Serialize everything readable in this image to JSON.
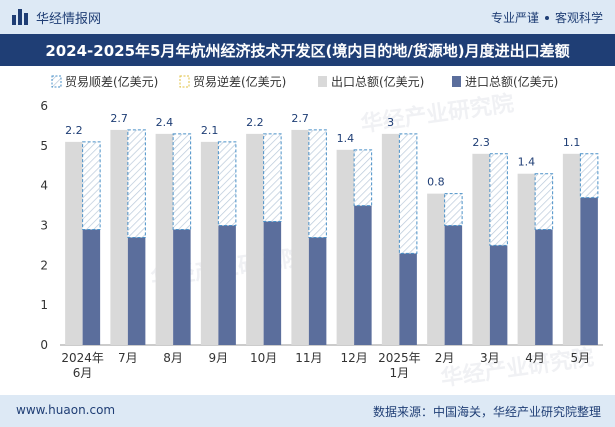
{
  "header": {
    "brand": "华经情报网",
    "tag1": "专业严谨",
    "tag2": "客观科学"
  },
  "title": "2024-2025年5月年杭州经济技术开发区(境内目的地/货源地)月度进出口差额",
  "footer": {
    "site": "www.huaon.com",
    "source": "数据来源：中国海关，华经产业研究院整理"
  },
  "watermark": "华经产业研究院",
  "colors": {
    "export": "#d9d9d9",
    "import": "#5b6e9c",
    "surplus_border": "#4a90c8",
    "axis_text": "#333333"
  },
  "chart_data": {
    "type": "bar",
    "categories": [
      [
        "2024年",
        "6月"
      ],
      [
        "7月"
      ],
      [
        "8月"
      ],
      [
        "9月"
      ],
      [
        "10月"
      ],
      [
        "11月"
      ],
      [
        "12月"
      ],
      [
        "2025年",
        "1月"
      ],
      [
        "2月"
      ],
      [
        "3月"
      ],
      [
        "4月"
      ],
      [
        "5月"
      ]
    ],
    "series": [
      {
        "name": "贸易顺差(亿美元)",
        "values": [
          2.2,
          2.7,
          2.4,
          2.1,
          2.2,
          2.7,
          1.4,
          3,
          0.8,
          2.3,
          1.4,
          1.1
        ]
      },
      {
        "name": "贸易逆差(亿美元)",
        "values": [
          null,
          null,
          null,
          null,
          null,
          null,
          null,
          null,
          null,
          null,
          null,
          null
        ]
      },
      {
        "name": "出口总额(亿美元)",
        "values": [
          5.1,
          5.4,
          5.3,
          5.1,
          5.3,
          5.4,
          4.9,
          5.3,
          3.8,
          4.8,
          4.3,
          4.8
        ]
      },
      {
        "name": "进口总额(亿美元)",
        "values": [
          2.9,
          2.7,
          2.9,
          3.0,
          3.1,
          2.7,
          3.5,
          2.3,
          3.0,
          2.5,
          2.9,
          3.7
        ]
      }
    ],
    "ylim": [
      0,
      6
    ],
    "yticks": [
      0,
      1,
      2,
      3,
      4,
      5,
      6
    ],
    "legend_position": "top-left",
    "grid": false
  }
}
